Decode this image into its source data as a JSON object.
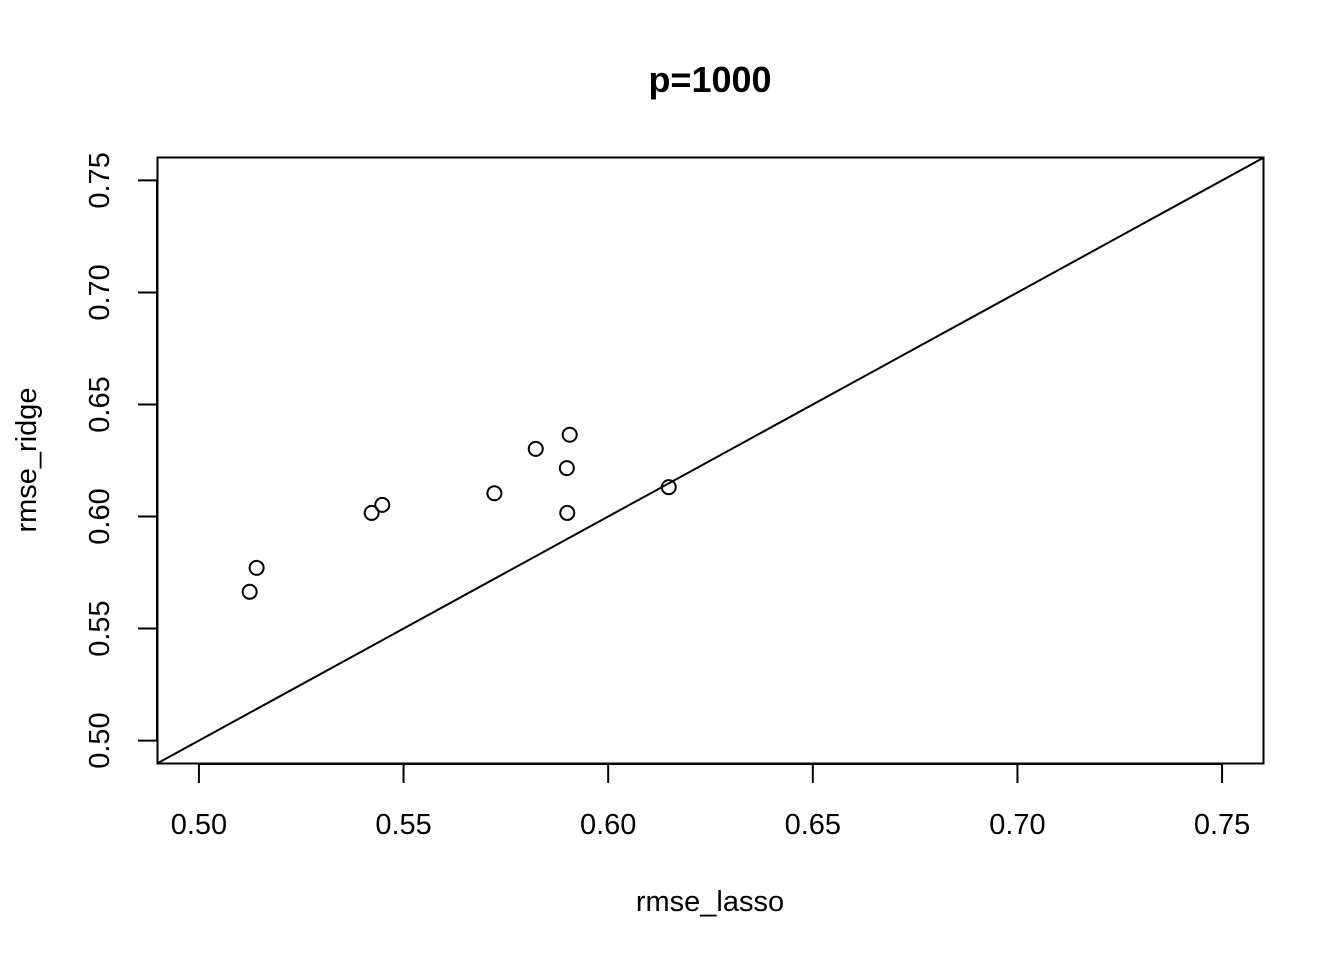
{
  "chart_data": {
    "type": "scatter",
    "title": "p=1000",
    "xlabel": "rmse_lasso",
    "ylabel": "rmse_ridge",
    "xlim": [
      0.49,
      0.76
    ],
    "ylim": [
      0.49,
      0.76
    ],
    "x_ticks": [
      0.5,
      0.55,
      0.6,
      0.65,
      0.7,
      0.75
    ],
    "x_tick_labels": [
      "0.50",
      "0.55",
      "0.60",
      "0.65",
      "0.70",
      "0.75"
    ],
    "y_ticks": [
      0.5,
      0.55,
      0.6,
      0.65,
      0.7,
      0.75
    ],
    "y_tick_labels": [
      "0.50",
      "0.55",
      "0.60",
      "0.65",
      "0.70",
      "0.75"
    ],
    "grid": false,
    "marker": "open-circle",
    "reference_line": {
      "type": "identity",
      "slope": 1,
      "intercept": 0
    },
    "points": [
      {
        "x": 0.5124,
        "y": 0.5664
      },
      {
        "x": 0.5141,
        "y": 0.5771
      },
      {
        "x": 0.5422,
        "y": 0.6016
      },
      {
        "x": 0.5448,
        "y": 0.6052
      },
      {
        "x": 0.5722,
        "y": 0.6104
      },
      {
        "x": 0.5823,
        "y": 0.6302
      },
      {
        "x": 0.5899,
        "y": 0.6216
      },
      {
        "x": 0.59,
        "y": 0.6016
      },
      {
        "x": 0.5906,
        "y": 0.6365
      },
      {
        "x": 0.6148,
        "y": 0.6131
      }
    ],
    "colors": {
      "marker_stroke": "#000000",
      "axis": "#000000",
      "background": "#ffffff"
    }
  }
}
